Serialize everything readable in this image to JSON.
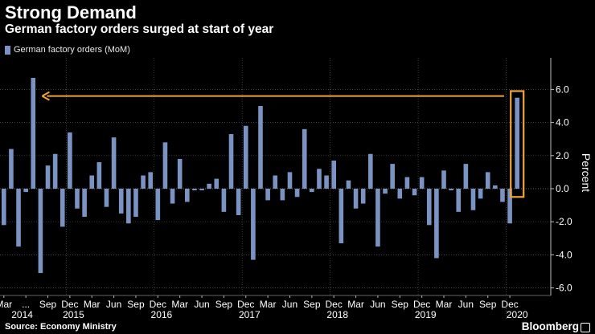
{
  "header": {
    "title": "Strong Demand",
    "subtitle": "German factory orders surged at start of year",
    "legend_label": "German factory orders (MoM)"
  },
  "footer": {
    "source": "Source: Economy Ministry",
    "brand": "Bloomberg"
  },
  "colors": {
    "background": "#000000",
    "bar": "#7b93c2",
    "highlight": "#f2a33a",
    "text": "#ffffff",
    "grid": "#555555"
  },
  "chart_data": {
    "type": "bar",
    "title": "Strong Demand",
    "subtitle": "German factory orders surged at start of year",
    "ylabel": "Percent",
    "xlabel": "",
    "ylim": [
      -6.5,
      7.5
    ],
    "y_ticks": [
      "6.0",
      "4.0",
      "2.0",
      "0.0",
      "-2.0",
      "-4.0",
      "-6.0"
    ],
    "y_tick_values": [
      6,
      4,
      2,
      0,
      -2,
      -4,
      -6
    ],
    "grid": true,
    "legend": "top-left",
    "series": [
      {
        "name": "German factory orders (MoM)",
        "values": [
          -2.2,
          2.4,
          -3.5,
          -0.2,
          6.7,
          -5.1,
          1.4,
          2.1,
          -2.3,
          3.4,
          -1.2,
          -1.7,
          0.8,
          1.6,
          -1.1,
          3.1,
          -1.5,
          -2.1,
          -1.7,
          0.8,
          1.0,
          -1.9,
          2.8,
          -0.9,
          1.8,
          -0.8,
          -0.1,
          -0.1,
          0.3,
          0.6,
          -1.4,
          3.3,
          -1.6,
          3.8,
          -4.3,
          5.0,
          -0.7,
          0.8,
          -0.7,
          1.0,
          -0.5,
          3.6,
          -0.2,
          1.2,
          0.8,
          1.7,
          -3.3,
          0.5,
          -1.2,
          -0.9,
          2.1,
          -3.5,
          -0.3,
          1.5,
          -0.6,
          0.7,
          -0.4,
          0.7,
          -2.2,
          -4.2,
          1.1,
          -0.1,
          -1.4,
          1.5,
          -1.3,
          -0.6,
          1.0,
          0.2,
          -0.8,
          -2.1,
          5.5
        ]
      }
    ],
    "x_month_labels": [
      "Mar",
      "...",
      "Sep",
      "Dec",
      "Mar",
      "Jun",
      "Sep",
      "Dec",
      "Mar",
      "Jun",
      "Sep",
      "Dec",
      "Mar",
      "Jun",
      "Sep",
      "Dec",
      "Mar",
      "Jun",
      "Sep",
      "Dec",
      "Mar",
      "Jun",
      "Sep",
      "Dec"
    ],
    "x_month_index": [
      0,
      3,
      6,
      9,
      12,
      15,
      18,
      21,
      24,
      27,
      30,
      33,
      36,
      39,
      42,
      45,
      48,
      51,
      54,
      57,
      60,
      63,
      66,
      69
    ],
    "x_year_labels": [
      "2014",
      "2015",
      "2016",
      "2017",
      "2018",
      "2019",
      "2020"
    ],
    "x_year_center_index": [
      2.5,
      9.5,
      21.5,
      33.5,
      45.5,
      57.5,
      70
    ],
    "annotation": {
      "type": "arrow",
      "from_index": 68,
      "to_index": 5,
      "y_value": 5.6,
      "highlight_index": 70,
      "highlight_range": [
        -0.5,
        5.9
      ]
    }
  }
}
